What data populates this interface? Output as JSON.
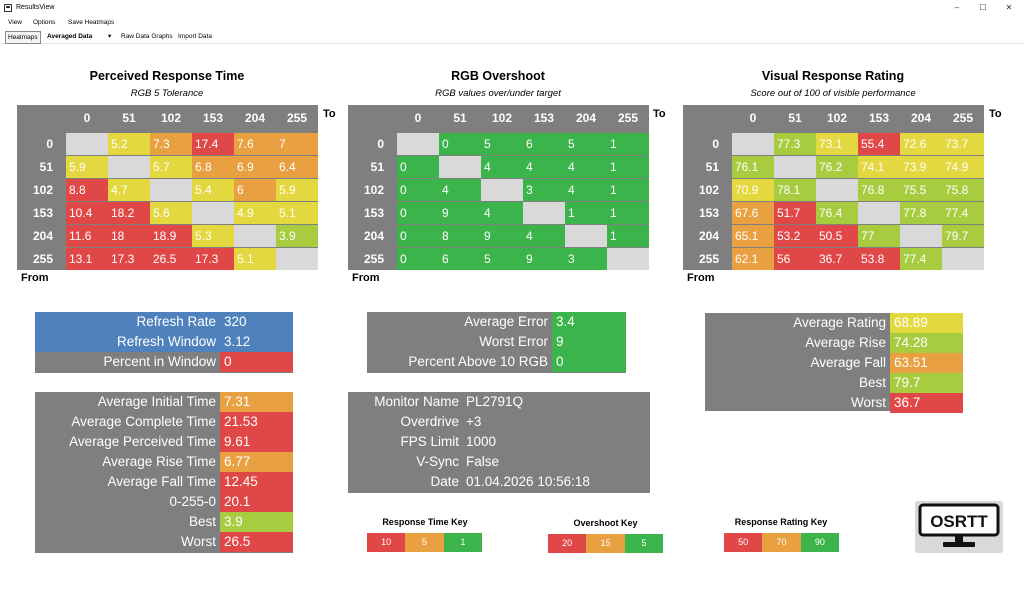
{
  "window": {
    "title": "ResultsView",
    "minimize": "–",
    "maximize": "☐",
    "close": "✕"
  },
  "menu": {
    "view": "View",
    "options": "Options",
    "save": "Save Heatmaps"
  },
  "toolbar": {
    "heatmaps": "Heatmaps",
    "dataset": "Averaged Data",
    "dropdown": "▾",
    "raw": "Raw Data Graphs",
    "import": "Import Data"
  },
  "labels": [
    "0",
    "51",
    "102",
    "153",
    "204",
    "255"
  ],
  "axis": {
    "to": "To",
    "from": "From"
  },
  "colors": {
    "red": "#e04848",
    "orange": "#e8a040",
    "yellow": "#e4d840",
    "lime": "#a8cc40",
    "green": "#3cb44c",
    "gray": "#7f7f7f",
    "diag": "#d9d9d9",
    "blue": "#4f81bd"
  },
  "heatmap1": {
    "title": "Perceived Response Time",
    "subtitle": "RGB 5 Tolerance",
    "rows": [
      [
        {
          "v": "",
          "c": "diag"
        },
        {
          "v": "5.2",
          "c": "yellow"
        },
        {
          "v": "7.3",
          "c": "orange"
        },
        {
          "v": "17.4",
          "c": "red"
        },
        {
          "v": "7.6",
          "c": "orange"
        },
        {
          "v": "7",
          "c": "orange"
        }
      ],
      [
        {
          "v": "5.9",
          "c": "yellow"
        },
        {
          "v": "",
          "c": "diag"
        },
        {
          "v": "5.7",
          "c": "yellow"
        },
        {
          "v": "6.8",
          "c": "orange"
        },
        {
          "v": "6.9",
          "c": "orange"
        },
        {
          "v": "6.4",
          "c": "orange"
        }
      ],
      [
        {
          "v": "8.8",
          "c": "red"
        },
        {
          "v": "4.7",
          "c": "yellow"
        },
        {
          "v": "",
          "c": "diag"
        },
        {
          "v": "5.4",
          "c": "yellow"
        },
        {
          "v": "6",
          "c": "orange"
        },
        {
          "v": "5.9",
          "c": "yellow"
        }
      ],
      [
        {
          "v": "10.4",
          "c": "red"
        },
        {
          "v": "18.2",
          "c": "red"
        },
        {
          "v": "5.6",
          "c": "yellow"
        },
        {
          "v": "",
          "c": "diag"
        },
        {
          "v": "4.9",
          "c": "yellow"
        },
        {
          "v": "5.1",
          "c": "yellow"
        }
      ],
      [
        {
          "v": "11.6",
          "c": "red"
        },
        {
          "v": "18",
          "c": "red"
        },
        {
          "v": "18.9",
          "c": "red"
        },
        {
          "v": "5.3",
          "c": "yellow"
        },
        {
          "v": "",
          "c": "diag"
        },
        {
          "v": "3.9",
          "c": "lime"
        }
      ],
      [
        {
          "v": "13.1",
          "c": "red"
        },
        {
          "v": "17.3",
          "c": "red"
        },
        {
          "v": "26.5",
          "c": "red"
        },
        {
          "v": "17.3",
          "c": "red"
        },
        {
          "v": "5.1",
          "c": "yellow"
        },
        {
          "v": "",
          "c": "diag"
        }
      ]
    ]
  },
  "heatmap2": {
    "title": "RGB Overshoot",
    "subtitle": "RGB values over/under target",
    "rows": [
      [
        {
          "v": "",
          "c": "diag"
        },
        {
          "v": "0",
          "c": "green"
        },
        {
          "v": "5",
          "c": "green"
        },
        {
          "v": "6",
          "c": "green"
        },
        {
          "v": "5",
          "c": "green"
        },
        {
          "v": "1",
          "c": "green"
        }
      ],
      [
        {
          "v": "0",
          "c": "green"
        },
        {
          "v": "",
          "c": "diag"
        },
        {
          "v": "4",
          "c": "green"
        },
        {
          "v": "4",
          "c": "green"
        },
        {
          "v": "4",
          "c": "green"
        },
        {
          "v": "1",
          "c": "green"
        }
      ],
      [
        {
          "v": "0",
          "c": "green"
        },
        {
          "v": "4",
          "c": "green"
        },
        {
          "v": "",
          "c": "diag"
        },
        {
          "v": "3",
          "c": "green"
        },
        {
          "v": "4",
          "c": "green"
        },
        {
          "v": "1",
          "c": "green"
        }
      ],
      [
        {
          "v": "0",
          "c": "green"
        },
        {
          "v": "9",
          "c": "green"
        },
        {
          "v": "4",
          "c": "green"
        },
        {
          "v": "",
          "c": "diag"
        },
        {
          "v": "1",
          "c": "green"
        },
        {
          "v": "1",
          "c": "green"
        }
      ],
      [
        {
          "v": "0",
          "c": "green"
        },
        {
          "v": "8",
          "c": "green"
        },
        {
          "v": "9",
          "c": "green"
        },
        {
          "v": "4",
          "c": "green"
        },
        {
          "v": "",
          "c": "diag"
        },
        {
          "v": "1",
          "c": "green"
        }
      ],
      [
        {
          "v": "0",
          "c": "green"
        },
        {
          "v": "6",
          "c": "green"
        },
        {
          "v": "5",
          "c": "green"
        },
        {
          "v": "9",
          "c": "green"
        },
        {
          "v": "3",
          "c": "green"
        },
        {
          "v": "",
          "c": "diag"
        }
      ]
    ]
  },
  "heatmap3": {
    "title": "Visual Response Rating",
    "subtitle": "Score out of 100 of visible performance",
    "rows": [
      [
        {
          "v": "",
          "c": "diag"
        },
        {
          "v": "77.3",
          "c": "lime"
        },
        {
          "v": "73.1",
          "c": "yellow"
        },
        {
          "v": "55.4",
          "c": "red"
        },
        {
          "v": "72.6",
          "c": "yellow"
        },
        {
          "v": "73.7",
          "c": "yellow"
        }
      ],
      [
        {
          "v": "76.1",
          "c": "lime"
        },
        {
          "v": "",
          "c": "diag"
        },
        {
          "v": "76.2",
          "c": "lime"
        },
        {
          "v": "74.1",
          "c": "yellow"
        },
        {
          "v": "73.9",
          "c": "yellow"
        },
        {
          "v": "74.9",
          "c": "yellow"
        }
      ],
      [
        {
          "v": "70.9",
          "c": "yellow"
        },
        {
          "v": "78.1",
          "c": "lime"
        },
        {
          "v": "",
          "c": "diag"
        },
        {
          "v": "76.8",
          "c": "lime"
        },
        {
          "v": "75.5",
          "c": "lime"
        },
        {
          "v": "75.8",
          "c": "lime"
        }
      ],
      [
        {
          "v": "67.6",
          "c": "orange"
        },
        {
          "v": "51.7",
          "c": "red"
        },
        {
          "v": "76.4",
          "c": "lime"
        },
        {
          "v": "",
          "c": "diag"
        },
        {
          "v": "77.8",
          "c": "lime"
        },
        {
          "v": "77.4",
          "c": "lime"
        }
      ],
      [
        {
          "v": "65.1",
          "c": "orange"
        },
        {
          "v": "53.2",
          "c": "red"
        },
        {
          "v": "50.5",
          "c": "red"
        },
        {
          "v": "77",
          "c": "lime"
        },
        {
          "v": "",
          "c": "diag"
        },
        {
          "v": "79.7",
          "c": "lime"
        }
      ],
      [
        {
          "v": "62.1",
          "c": "orange"
        },
        {
          "v": "56",
          "c": "red"
        },
        {
          "v": "36.7",
          "c": "red"
        },
        {
          "v": "53.8",
          "c": "red"
        },
        {
          "v": "77.4",
          "c": "lime"
        },
        {
          "v": "",
          "c": "diag"
        }
      ]
    ]
  },
  "refresh": [
    {
      "label": "Refresh Rate",
      "value": "320",
      "lc": "blue",
      "vc": "blue"
    },
    {
      "label": "Refresh Window",
      "value": "3.12",
      "lc": "blue",
      "vc": "blue"
    },
    {
      "label": "Percent in Window",
      "value": "0",
      "lc": "gray",
      "vc": "red"
    }
  ],
  "times": [
    {
      "label": "Average Initial Time",
      "value": "7.31",
      "vc": "orange"
    },
    {
      "label": "Average Complete Time",
      "value": "21.53",
      "vc": "red"
    },
    {
      "label": "Average Perceived Time",
      "value": "9.61",
      "vc": "red"
    },
    {
      "label": "Average Rise Time",
      "value": "6.77",
      "vc": "orange"
    },
    {
      "label": "Average Fall Time",
      "value": "12.45",
      "vc": "red"
    },
    {
      "label": "0-255-0",
      "value": "20.1",
      "vc": "red"
    },
    {
      "label": "Best",
      "value": "3.9",
      "vc": "lime"
    },
    {
      "label": "Worst",
      "value": "26.5",
      "vc": "red"
    }
  ],
  "errors": [
    {
      "label": "Average Error",
      "value": "3.4",
      "vc": "green"
    },
    {
      "label": "Worst Error",
      "value": "9",
      "vc": "green"
    },
    {
      "label": "Percent Above 10 RGB",
      "value": "0",
      "vc": "green"
    }
  ],
  "monitor": [
    {
      "label": "Monitor Name",
      "value": "PL2791Q"
    },
    {
      "label": "Overdrive",
      "value": "+3"
    },
    {
      "label": "FPS Limit",
      "value": "1000"
    },
    {
      "label": "V-Sync",
      "value": "False"
    },
    {
      "label": "Date",
      "value": "01.04.2026 10:56:18"
    }
  ],
  "ratings": [
    {
      "label": "Average Rating",
      "value": "68.89",
      "vc": "yellow"
    },
    {
      "label": "Average Rise",
      "value": "74.28",
      "vc": "lime"
    },
    {
      "label": "Average Fall",
      "value": "63.51",
      "vc": "orange"
    },
    {
      "label": "Best",
      "value": "79.7",
      "vc": "lime"
    },
    {
      "label": "Worst",
      "value": "36.7",
      "vc": "red"
    }
  ],
  "keys": [
    {
      "title": "Response Time Key",
      "items": [
        {
          "v": "10",
          "c": "red"
        },
        {
          "v": "5",
          "c": "orange"
        },
        {
          "v": "1",
          "c": "green"
        }
      ]
    },
    {
      "title": "Overshoot Key",
      "items": [
        {
          "v": "20",
          "c": "red"
        },
        {
          "v": "15",
          "c": "orange"
        },
        {
          "v": "5",
          "c": "green"
        }
      ]
    },
    {
      "title": "Response Rating Key",
      "items": [
        {
          "v": "50",
          "c": "red"
        },
        {
          "v": "70",
          "c": "orange"
        },
        {
          "v": "90",
          "c": "green"
        }
      ]
    }
  ],
  "logo": {
    "text": "OSRTT"
  }
}
